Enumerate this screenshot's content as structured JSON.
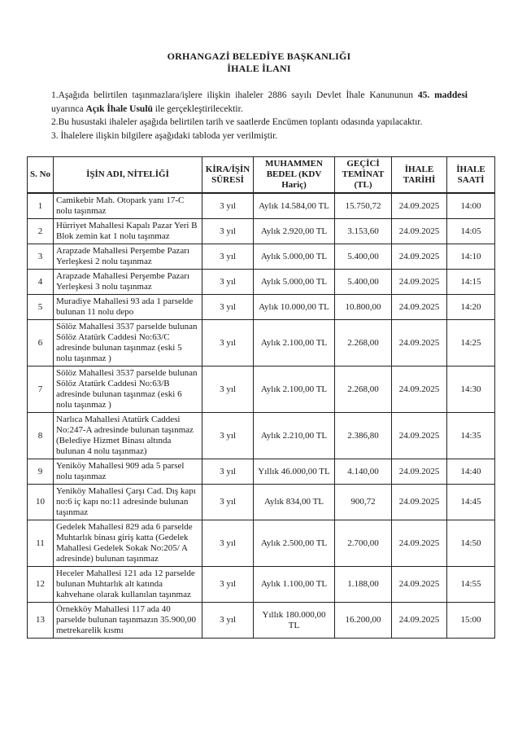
{
  "document": {
    "title_line1": "ORHANGAZİ BELEDİYE BAŞKANLIĞI",
    "title_line2": "İHALE İLANI",
    "paragraphs": {
      "p1_pre": "1.Aşağıda belirtilen taşınmazlara/işlere ilişkin ihaleler 2886 sayılı Devlet İhale Kanununun ",
      "p1_bold1": "45. maddesi",
      "p1_mid": " uyarınca ",
      "p1_bold2": "Açık İhale Usulü",
      "p1_post": " ile gerçekleştirilecektir.",
      "p2": "2.Bu husustaki ihaleler aşağıda belirtilen tarih ve saatlerde Encümen toplantı odasında yapılacaktır.",
      "p3": "3. İhalelere ilişkin bilgilere aşağıdaki tabloda yer verilmiştir."
    },
    "table": {
      "headers": [
        "S. No",
        "İŞİN ADI, NİTELİĞİ",
        "KİRA/İŞİN SÜRESİ",
        "MUHAMMEN BEDEL (KDV Hariç)",
        "GEÇİCİ TEMİNAT (TL)",
        "İHALE TARİHİ",
        "İHALE SAATİ"
      ],
      "rows": [
        [
          "1",
          "Camikebir Mah. Otopark yanı 17-C nolu taşınmaz",
          "3 yıl",
          "Aylık 14.584,00 TL",
          "15.750,72",
          "24.09.2025",
          "14:00"
        ],
        [
          "2",
          "Hürriyet Mahallesi Kapalı Pazar Yeri B Blok zemin kat 1 nolu taşınmaz",
          "3 yıl",
          "Aylık 2.920,00 TL",
          "3.153,60",
          "24.09.2025",
          "14:05"
        ],
        [
          "3",
          "Arapzade Mahallesi Perşembe Pazarı Yerleşkesi 2 nolu taşınmaz",
          "3 yıl",
          "Aylık 5.000,00 TL",
          "5.400,00",
          "24.09.2025",
          "14:10"
        ],
        [
          "4",
          "Arapzade Mahallesi Perşembe Pazarı Yerleşkesi 3 nolu taşınmaz",
          "3 yıl",
          "Aylık 5.000,00 TL",
          "5.400,00",
          "24.09.2025",
          "14:15"
        ],
        [
          "5",
          "Muradiye Mahallesi 93 ada 1 parselde bulunan 11 nolu depo",
          "3 yıl",
          "Aylık 10.000,00 TL",
          "10.800,00",
          "24.09.2025",
          "14:20"
        ],
        [
          "6",
          "Sölöz Mahallesi 3537 parselde bulunan Sölöz Atatürk Caddesi No:63/C adresinde bulunan taşınmaz (eski 5 nolu taşınmaz )",
          "3 yıl",
          "Aylık 2.100,00 TL",
          "2.268,00",
          "24.09.2025",
          "14:25"
        ],
        [
          "7",
          "Sölöz Mahallesi 3537 parselde bulunan Sölöz Atatürk Caddesi No:63/B adresinde bulunan taşınmaz (eski 6 nolu taşınmaz )",
          "3 yıl",
          "Aylık 2.100,00 TL",
          "2.268,00",
          "24.09.2025",
          "14:30"
        ],
        [
          "8",
          "Narlıca Mahallesi Atatürk Caddesi No:247-A adresinde bulunan taşınmaz (Belediye Hizmet Binası altında bulunan 4 nolu taşınmaz)",
          "3 yıl",
          "Aylık 2.210,00 TL",
          "2.386,80",
          "24.09.2025",
          "14:35"
        ],
        [
          "9",
          "Yeniköy Mahallesi 909 ada 5 parsel nolu taşınmaz",
          "3 yıl",
          "Yıllık 46.000,00 TL",
          "4.140,00",
          "24.09.2025",
          "14:40"
        ],
        [
          "10",
          "Yeniköy Mahallesi Çarşı Cad. Dış kapı no:6 iç kapı no:11 adresinde bulunan taşınmaz",
          "3 yıl",
          "Aylık 834,00 TL",
          "900,72",
          "24.09.2025",
          "14:45"
        ],
        [
          "11",
          "Gedelek Mahallesi 829 ada 6 parselde Muhtarlık binası giriş katta (Gedelek Mahallesi Gedelek Sokak No:205/ A adresinde) bulunan taşınmaz",
          "3 yıl",
          "Aylık 2.500,00 TL",
          "2.700,00",
          "24.09.2025",
          "14:50"
        ],
        [
          "12",
          "Heceler Mahallesi 121 ada 12 parselde bulunan Muhtarlık alt katında kahvehane olarak kullanılan taşınmaz",
          "3 yıl",
          "Aylık 1.100,00 TL",
          "1.188,00",
          "24.09.2025",
          "14:55"
        ],
        [
          "13",
          "Örnekköy Mahallesi 117 ada 40 parselde bulunan taşınmazın 35.900,00 metrekarelik kısmı",
          "3 yıl",
          "Yıllık 180.000,00 TL",
          "16.200,00",
          "24.09.2025",
          "15:00"
        ]
      ]
    }
  }
}
